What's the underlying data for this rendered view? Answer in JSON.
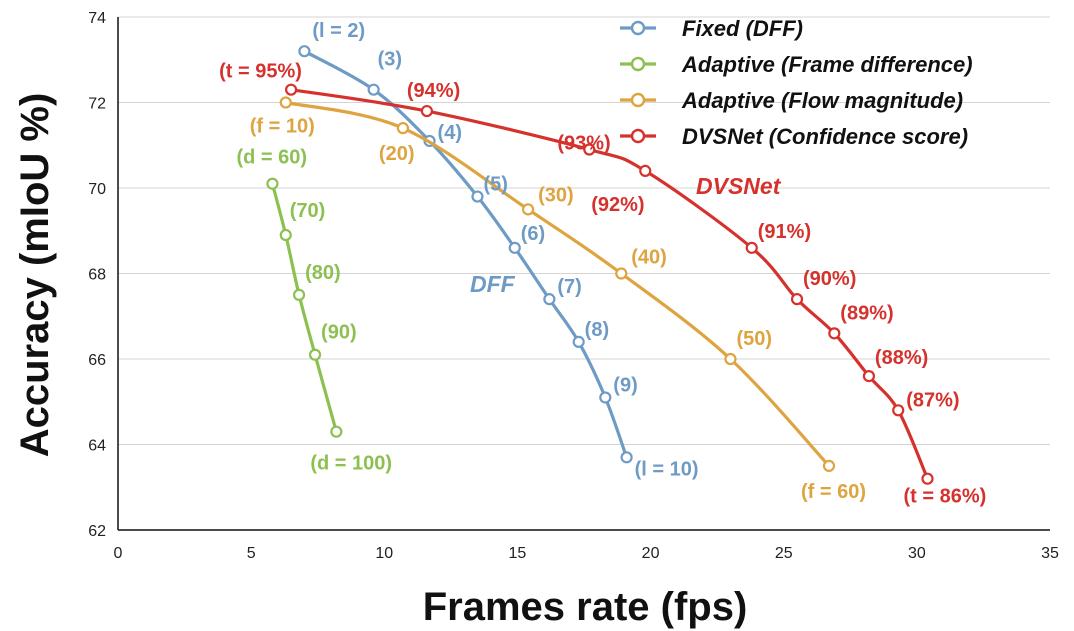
{
  "chart_data": {
    "type": "line",
    "xlabel": "Frames rate (fps)",
    "ylabel": "Accuracy (mIoU %)",
    "xlim": [
      0,
      35
    ],
    "ylim": [
      62,
      74
    ],
    "xticks": [
      0,
      5,
      10,
      15,
      20,
      25,
      30,
      35
    ],
    "yticks": [
      62,
      64,
      66,
      68,
      70,
      72,
      74
    ],
    "grid": "horizontal",
    "legend": "top-right",
    "series": [
      {
        "name": "Fixed  (DFF)",
        "tag": "DFF",
        "color": "#6E9BC6",
        "points": [
          {
            "x": 7.0,
            "y": 73.2,
            "label": "(l = 2)"
          },
          {
            "x": 9.6,
            "y": 72.3,
            "label": "(3)"
          },
          {
            "x": 11.7,
            "y": 71.1,
            "label": "(4)"
          },
          {
            "x": 13.5,
            "y": 69.8,
            "label": "(5)"
          },
          {
            "x": 14.9,
            "y": 68.6,
            "label": "(6)"
          },
          {
            "x": 16.2,
            "y": 67.4,
            "label": "(7)"
          },
          {
            "x": 17.3,
            "y": 66.4,
            "label": "(8)"
          },
          {
            "x": 18.3,
            "y": 65.1,
            "label": "(9)"
          },
          {
            "x": 19.1,
            "y": 63.7,
            "label": "(l = 10)"
          }
        ]
      },
      {
        "name": "Adaptive (Frame difference)",
        "color": "#8CC152",
        "points": [
          {
            "x": 5.8,
            "y": 70.1,
            "label": "(d = 60)"
          },
          {
            "x": 6.3,
            "y": 68.9,
            "label": "(70)"
          },
          {
            "x": 6.8,
            "y": 67.5,
            "label": "(80)"
          },
          {
            "x": 7.4,
            "y": 66.1,
            "label": "(90)"
          },
          {
            "x": 8.2,
            "y": 64.3,
            "label": "(d = 100)"
          }
        ]
      },
      {
        "name": "Adaptive (Flow magnitude)",
        "color": "#DDA440",
        "points": [
          {
            "x": 6.3,
            "y": 72.0,
            "label": "(f = 10)"
          },
          {
            "x": 10.7,
            "y": 71.4,
            "label": "(20)"
          },
          {
            "x": 15.4,
            "y": 69.5,
            "label": "(30)"
          },
          {
            "x": 18.9,
            "y": 68.0,
            "label": "(40)"
          },
          {
            "x": 23.0,
            "y": 66.0,
            "label": "(50)"
          },
          {
            "x": 26.7,
            "y": 63.5,
            "label": "(f = 60)"
          }
        ]
      },
      {
        "name": "DVSNet (Confidence score)",
        "tag": "DVSNet",
        "color": "#D6322D",
        "points": [
          {
            "x": 6.5,
            "y": 72.3,
            "label": "(t = 95%)"
          },
          {
            "x": 11.6,
            "y": 71.8,
            "label": "(94%)"
          },
          {
            "x": 17.7,
            "y": 70.9,
            "label": "(93%)"
          },
          {
            "x": 19.8,
            "y": 70.4,
            "label": "(92%)"
          },
          {
            "x": 23.8,
            "y": 68.6,
            "label": "(91%)"
          },
          {
            "x": 25.5,
            "y": 67.4,
            "label": "(90%)"
          },
          {
            "x": 26.9,
            "y": 66.6,
            "label": "(89%)"
          },
          {
            "x": 28.2,
            "y": 65.6,
            "label": "(88%)"
          },
          {
            "x": 29.3,
            "y": 64.8,
            "label": "(87%)"
          },
          {
            "x": 30.4,
            "y": 63.2,
            "label": "(t = 86%)"
          }
        ]
      }
    ]
  }
}
